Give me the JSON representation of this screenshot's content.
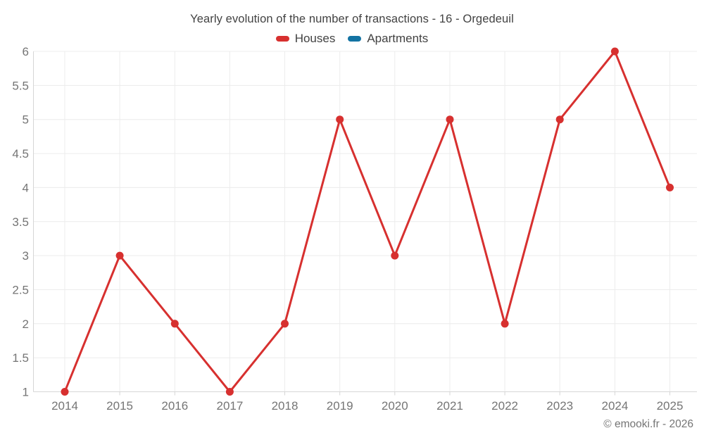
{
  "chart": {
    "title": "Yearly evolution of the number of transactions - 16 - Orgedeuil"
  },
  "legend": {
    "items": [
      {
        "label": "Houses",
        "color": "#d7302f"
      },
      {
        "label": "Apartments",
        "color": "#1373a3"
      }
    ]
  },
  "footer": {
    "copyright": "© emooki.fr - 2026"
  },
  "chart_data": {
    "type": "line",
    "title": "Yearly evolution of the number of transactions - 16 - Orgedeuil",
    "categories": [
      "2014",
      "2015",
      "2016",
      "2017",
      "2018",
      "2019",
      "2020",
      "2021",
      "2022",
      "2023",
      "2024",
      "2025"
    ],
    "series": [
      {
        "name": "Houses",
        "color": "#d7302f",
        "values": [
          1,
          3,
          2,
          1,
          2,
          5,
          3,
          5,
          2,
          5,
          6,
          4
        ]
      },
      {
        "name": "Apartments",
        "color": "#1373a3",
        "values": []
      }
    ],
    "xlabel": "",
    "ylabel": "",
    "ylim": [
      1,
      6
    ],
    "ytick_step": 0.5,
    "grid": true,
    "legend_position": "top",
    "marker": "circle",
    "grid_color": "#ececec",
    "axis_color": "#d6d6d6",
    "tick_label_color": "#757575"
  }
}
